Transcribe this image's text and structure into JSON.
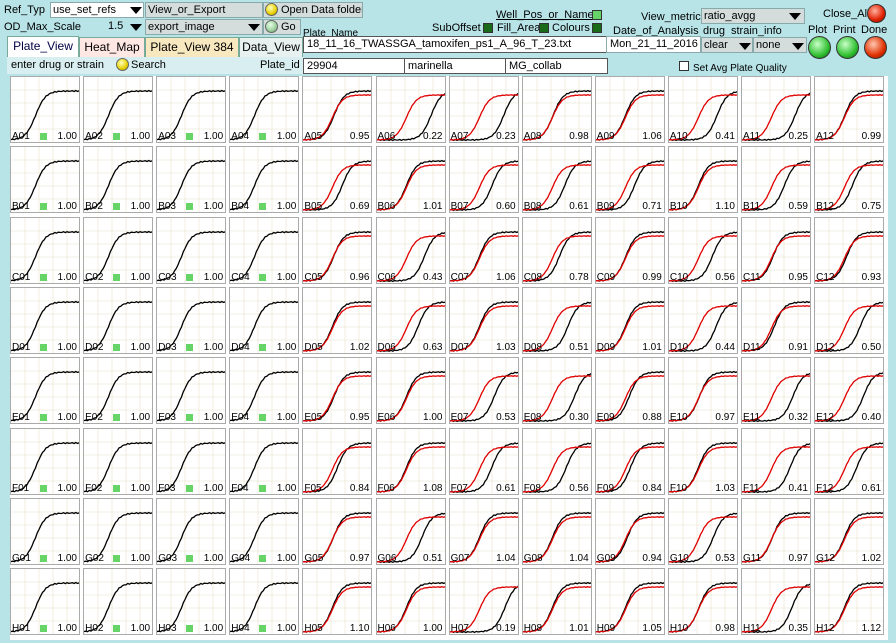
{
  "toolbar": {
    "ref_typ_label": "Ref_Typ",
    "ref_typ_value": "use_set_refs",
    "view_or_export": "View_or_Export",
    "open_data_folder": "Open Data folder",
    "od_max_label": "OD_Max_Scale",
    "od_max_value": "1.5",
    "export_value": "export_image",
    "go": "Go",
    "plate_name_label": "Plate_Name",
    "well_pos_label": "Well_Pos_or_Name",
    "suboffset_label": "SubOffset",
    "fill_area_label": "Fill_Area",
    "colours_label": "Colours",
    "view_metric_label": "View_metric",
    "view_metric_value": "ratio_avgg",
    "date_label": "Date_of_Analysis",
    "date_value": "Mon_21_11_2016",
    "drug_label": "drug",
    "strain_info_label": "strain_info",
    "drug_value": "clear",
    "strain_value": "none",
    "close_all": "Close_All",
    "plot": "Plot",
    "print": "Print",
    "done": "Done"
  },
  "tabs": [
    "Plate_View",
    "Heat_Map",
    "Plate_View 384",
    "Data_View"
  ],
  "plate": {
    "name": "18_11_16_TWASSGA_tamoxifen_ps1_A_96_T_23.txt",
    "id_label": "Plate_id",
    "id": "29904",
    "user": "marinella",
    "group": "MG_collab"
  },
  "search": {
    "placeholder": "enter drug or strain",
    "button": "Search"
  },
  "avg_quality_label": "Set Avg Plate Quality",
  "rows": [
    "A",
    "B",
    "C",
    "D",
    "E",
    "F",
    "G",
    "H"
  ],
  "wells": {
    "A": [
      "1.00",
      "1.00",
      "1.00",
      "1.00",
      "0.95",
      "0.22",
      "0.23",
      "0.98",
      "1.06",
      "0.41",
      "0.25",
      "0.99"
    ],
    "B": [
      "1.00",
      "1.00",
      "1.00",
      "1.00",
      "0.69",
      "1.01",
      "0.60",
      "0.61",
      "0.71",
      "1.10",
      "0.59",
      "0.75"
    ],
    "C": [
      "1.00",
      "1.00",
      "1.00",
      "1.00",
      "0.96",
      "0.43",
      "1.06",
      "0.78",
      "0.99",
      "0.56",
      "0.95",
      "0.93"
    ],
    "D": [
      "1.00",
      "1.00",
      "1.00",
      "1.00",
      "1.02",
      "0.63",
      "1.03",
      "0.51",
      "1.01",
      "0.44",
      "0.91",
      "0.50"
    ],
    "E": [
      "1.00",
      "1.00",
      "1.00",
      "1.00",
      "0.95",
      "1.00",
      "0.53",
      "0.30",
      "0.88",
      "0.97",
      "0.32",
      "0.40"
    ],
    "F": [
      "1.00",
      "1.00",
      "1.00",
      "1.00",
      "0.84",
      "1.08",
      "0.61",
      "0.56",
      "0.84",
      "1.03",
      "0.41",
      "0.61"
    ],
    "G": [
      "1.00",
      "1.00",
      "1.00",
      "1.00",
      "0.97",
      "0.51",
      "1.04",
      "1.04",
      "0.94",
      "0.53",
      "0.97",
      "1.02"
    ],
    "H": [
      "1.00",
      "1.00",
      "1.00",
      "1.00",
      "1.10",
      "1.00",
      "0.19",
      "1.01",
      "1.05",
      "0.98",
      "0.35",
      "1.12"
    ]
  },
  "colors": {
    "bg": "#b8e4e8",
    "curve_ref": "#000000",
    "curve_test": "#e00000",
    "ok_square": "#66d466"
  }
}
